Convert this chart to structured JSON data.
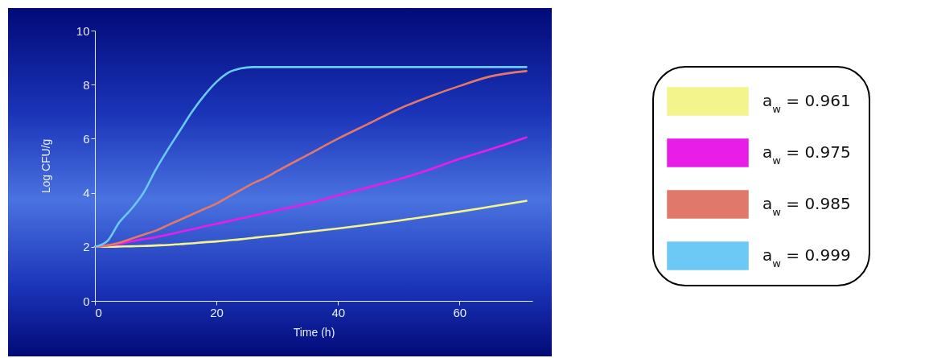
{
  "chart_data": {
    "type": "line",
    "xlabel": "Time (h)",
    "ylabel": "Log CFU/g",
    "x": [
      0,
      2,
      4,
      6,
      8,
      10,
      12,
      14,
      16,
      18,
      20,
      22,
      24,
      26,
      28,
      30,
      35,
      40,
      45,
      50,
      55,
      60,
      65,
      71
    ],
    "series": [
      {
        "name": "a$_{w}$ = 0.961",
        "color": "#f4f48c",
        "values": [
          2,
          2,
          2.01,
          2.02,
          2.03,
          2.05,
          2.07,
          2.1,
          2.13,
          2.17,
          2.2,
          2.24,
          2.28,
          2.33,
          2.38,
          2.42,
          2.55,
          2.68,
          2.82,
          2.97,
          3.13,
          3.3,
          3.48,
          3.7
        ]
      },
      {
        "name": "a$_{w}$ = 0.975",
        "color": "#e81ee8",
        "values": [
          2,
          2.05,
          2.1,
          2.2,
          2.28,
          2.35,
          2.45,
          2.55,
          2.65,
          2.75,
          2.85,
          2.95,
          3.05,
          3.15,
          3.25,
          3.35,
          3.6,
          3.9,
          4.2,
          4.5,
          4.85,
          5.25,
          5.6,
          6.05
        ]
      },
      {
        "name": "a$_{w}$ = 0.985",
        "color": "#e0786c",
        "values": [
          2,
          2.05,
          2.15,
          2.3,
          2.45,
          2.6,
          2.8,
          3,
          3.2,
          3.4,
          3.6,
          3.85,
          4.1,
          4.35,
          4.55,
          4.8,
          5.4,
          6,
          6.55,
          7.1,
          7.55,
          7.95,
          8.3,
          8.5
        ]
      },
      {
        "name": "a$_{w}$ = 0.999",
        "color": "#6cc8f4",
        "values": [
          2,
          2.2,
          2.9,
          3.4,
          4,
          4.85,
          5.6,
          6.3,
          7,
          7.6,
          8.1,
          8.45,
          8.6,
          8.65,
          8.65,
          8.65,
          8.65,
          8.65,
          8.65,
          8.65,
          8.65,
          8.65,
          8.65,
          8.65
        ]
      }
    ],
    "xlim": [
      0,
      72
    ],
    "xticks": [
      0,
      20,
      40,
      60
    ],
    "ylim": [
      0,
      10
    ],
    "yticks": [
      0,
      2,
      4,
      6,
      8,
      10
    ],
    "legend": "right"
  }
}
